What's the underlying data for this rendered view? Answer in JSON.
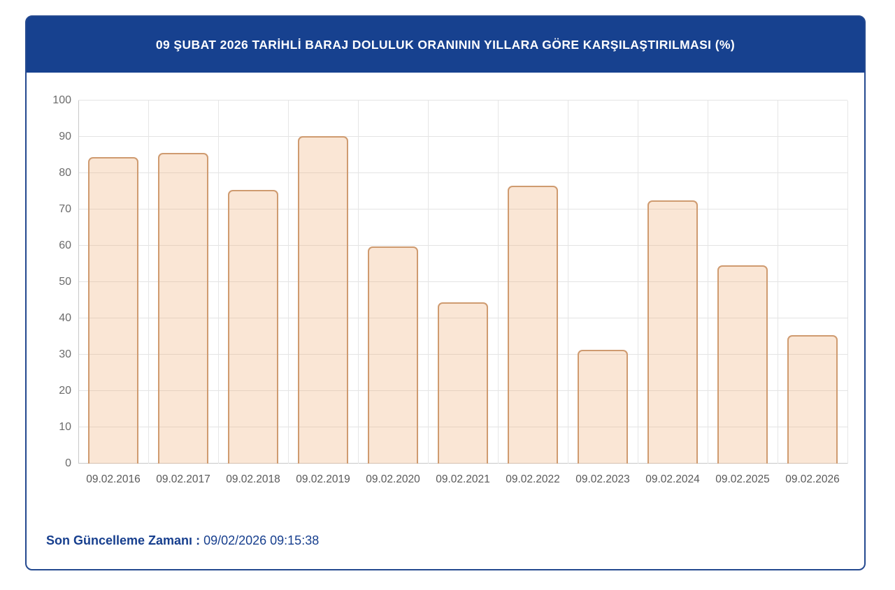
{
  "header": {
    "title": "09 ŞUBAT 2026 TARİHLİ BARAJ DOLULUK ORANININ YILLARA GÖRE KARŞILAŞTIRILMASI (%)"
  },
  "chart_data": {
    "type": "bar",
    "title": "09 ŞUBAT 2026 TARİHLİ BARAJ DOLULUK ORANININ YILLARA GÖRE KARŞILAŞTIRILMASI (%)",
    "categories": [
      "09.02.2016",
      "09.02.2017",
      "09.02.2018",
      "09.02.2019",
      "09.02.2020",
      "09.02.2021",
      "09.02.2022",
      "09.02.2023",
      "09.02.2024",
      "09.02.2025",
      "09.02.2026"
    ],
    "values": [
      84.5,
      85.6,
      75.3,
      90.2,
      59.8,
      44.4,
      76.5,
      31.4,
      72.5,
      54.7,
      35.4
    ],
    "xlabel": "",
    "ylabel": "",
    "ylim": [
      0,
      100
    ],
    "yticks": [
      0,
      10,
      20,
      30,
      40,
      50,
      60,
      70,
      80,
      90,
      100
    ],
    "grid": true,
    "legend": false,
    "bar_fill": "rgba(238,178,124,0.32)",
    "bar_border": "#cf9b70",
    "header_background": "#17418f",
    "card_border": "#24498f",
    "footer_color": "#173f8e"
  },
  "footer": {
    "label": "Son Güncelleme Zamanı",
    "separator": " : ",
    "value": "09/02/2026 09:15:38"
  }
}
